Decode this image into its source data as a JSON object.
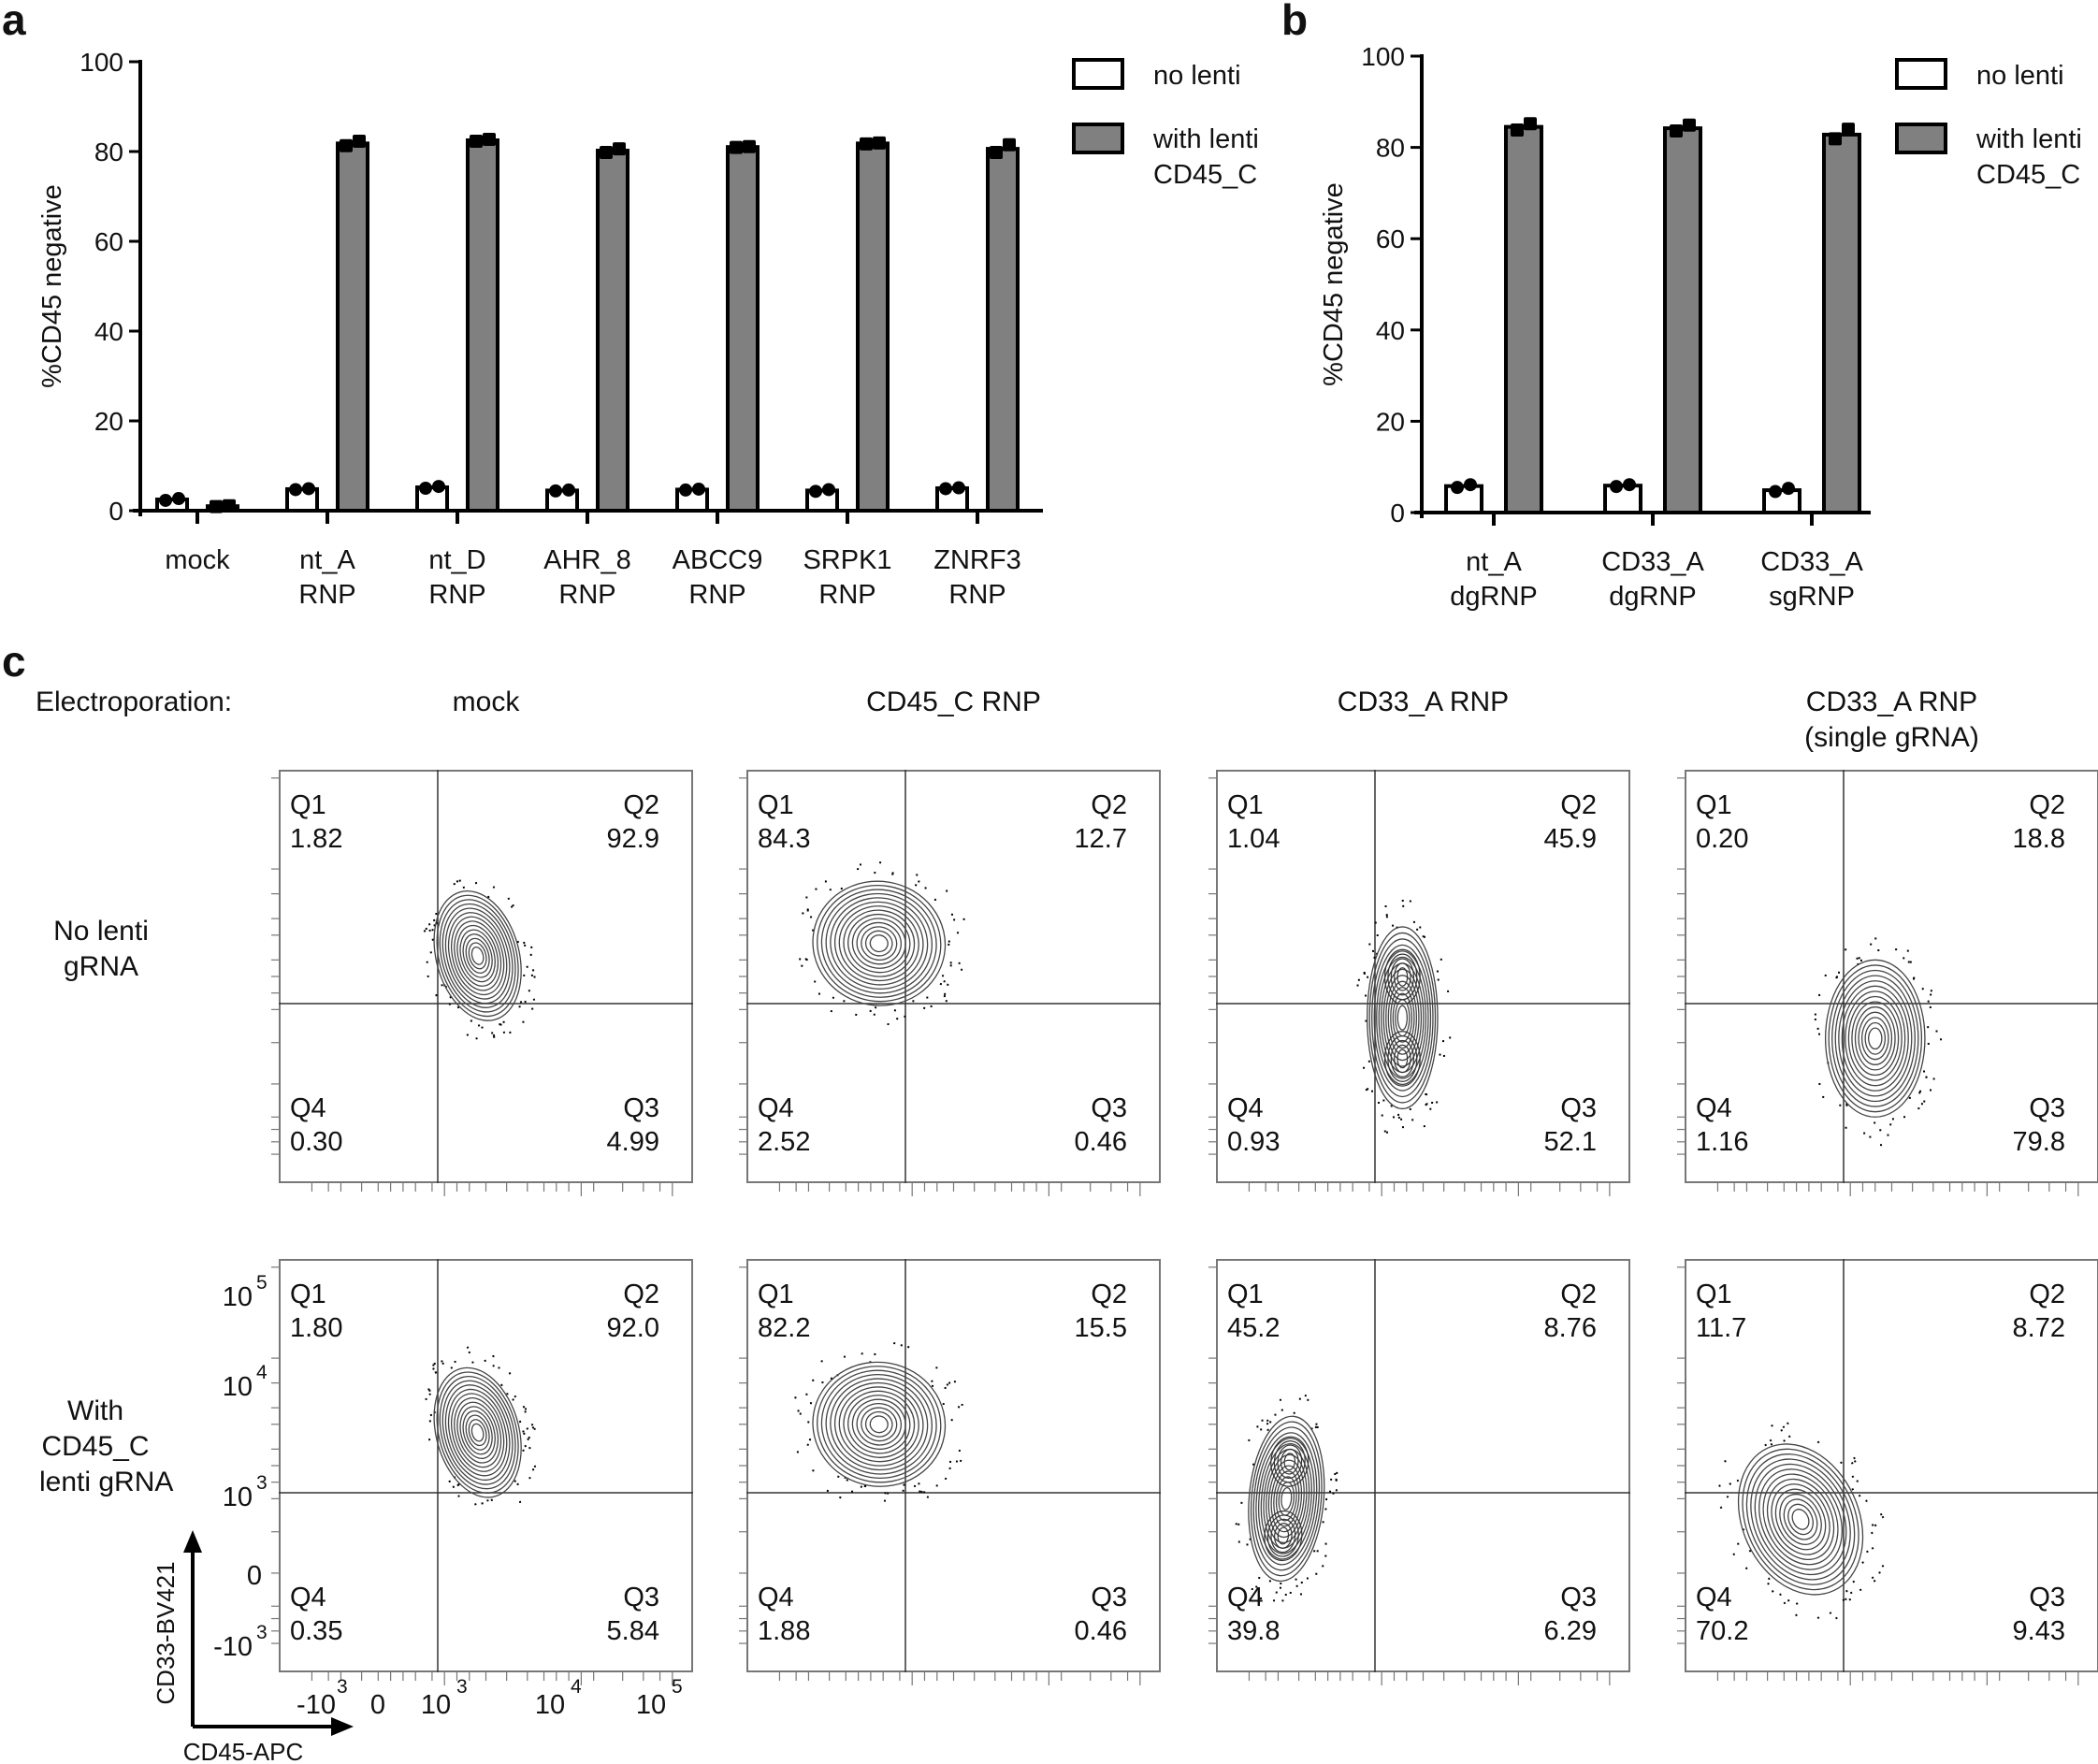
{
  "panels": {
    "a": "a",
    "b": "b",
    "c": "c"
  },
  "chart_data": [
    {
      "type": "bar",
      "panel": "a",
      "title": "",
      "xlabel": "",
      "ylabel": "%CD45 negative",
      "ylim": [
        0,
        100
      ],
      "yticks": [
        "0",
        "20",
        "40",
        "60",
        "80",
        "100"
      ],
      "categories": [
        "mock",
        "nt_A\nRNP",
        "nt_D\nRNP",
        "AHR_8\nRNP",
        "ABCC9\nRNP",
        "SRPK1\nRNP",
        "ZNRF3\nRNP"
      ],
      "series": [
        {
          "name": "no lenti",
          "color": "#ffffff",
          "values": [
            2.5,
            4.8,
            5.2,
            4.5,
            4.7,
            4.5,
            5.0
          ],
          "points": [
            [
              2.3,
              2.7
            ],
            [
              4.7,
              4.9
            ],
            [
              5.0,
              5.4
            ],
            [
              4.4,
              4.6
            ],
            [
              4.6,
              4.8
            ],
            [
              4.3,
              4.7
            ],
            [
              4.9,
              5.1
            ]
          ]
        },
        {
          "name": "with lenti\nCD45_C",
          "color": "#808080",
          "values": [
            1.0,
            81.8,
            82.5,
            80.2,
            81.0,
            81.8,
            80.6
          ],
          "points": [
            [
              0.9,
              1.1
            ],
            [
              81.3,
              82.3
            ],
            [
              82.3,
              82.7
            ],
            [
              79.8,
              80.6
            ],
            [
              80.9,
              81.1
            ],
            [
              81.7,
              81.9
            ],
            [
              79.8,
              81.5
            ]
          ]
        }
      ],
      "legend_position": "top-right",
      "grid": false
    },
    {
      "type": "bar",
      "panel": "b",
      "title": "",
      "xlabel": "",
      "ylabel": "%CD45 negative",
      "ylim": [
        0,
        100
      ],
      "yticks": [
        "0",
        "20",
        "40",
        "60",
        "80",
        "100"
      ],
      "categories": [
        "nt_A\ndgRNP",
        "CD33_A\ndgRNP",
        "CD33_A\nsgRNP"
      ],
      "series": [
        {
          "name": "no lenti",
          "color": "#ffffff",
          "values": [
            5.8,
            5.9,
            4.9
          ],
          "points": [
            [
              5.5,
              6.1
            ],
            [
              5.7,
              6.1
            ],
            [
              4.6,
              5.3
            ]
          ]
        },
        {
          "name": "with lenti\nCD45_C",
          "color": "#808080",
          "values": [
            84.5,
            84.2,
            82.8
          ],
          "points": [
            [
              83.8,
              85.2
            ],
            [
              83.6,
              84.9
            ],
            [
              81.9,
              84.0
            ]
          ]
        }
      ],
      "legend_position": "top-right",
      "grid": false
    },
    {
      "type": "table",
      "panel": "c",
      "title": "Flow cytometry quadrant percentages",
      "row_header": "Electroporation:",
      "columns": [
        "mock",
        "CD45_C RNP",
        "CD33_A RNP",
        "CD33_A RNP\n(single gRNA)"
      ],
      "rows": [
        "No lenti\ngRNA",
        "With\nCD45_C\nlenti gRNA"
      ],
      "xlabel": "CD45-APC",
      "ylabel": "CD33-BV421",
      "axis_ticks": [
        "-10^3",
        "0",
        "10^3",
        "10^4",
        "10^5"
      ],
      "quadrants": [
        [
          {
            "Q1": "1.82",
            "Q2": "92.9",
            "Q3": "4.99",
            "Q4": "0.30"
          },
          {
            "Q1": "84.3",
            "Q2": "12.7",
            "Q3": "0.46",
            "Q4": "2.52"
          },
          {
            "Q1": "1.04",
            "Q2": "45.9",
            "Q3": "52.1",
            "Q4": "0.93"
          },
          {
            "Q1": "0.20",
            "Q2": "18.8",
            "Q3": "79.8",
            "Q4": "1.16"
          }
        ],
        [
          {
            "Q1": "1.80",
            "Q2": "92.0",
            "Q3": "5.84",
            "Q4": "0.35"
          },
          {
            "Q1": "82.2",
            "Q2": "15.5",
            "Q3": "0.46",
            "Q4": "1.88"
          },
          {
            "Q1": "45.2",
            "Q2": "8.76",
            "Q3": "6.29",
            "Q4": "39.8"
          },
          {
            "Q1": "11.7",
            "Q2": "8.72",
            "Q3": "9.43",
            "Q4": "70.2"
          }
        ]
      ]
    }
  ],
  "legend": {
    "no_lenti": "no lenti",
    "with_lenti": "with lenti\nCD45_C"
  },
  "c_labels": {
    "electroporation": "Electroporation:",
    "cols": [
      "mock",
      "CD45_C RNP",
      "CD33_A RNP",
      "CD33_A RNP\n(single gRNA)"
    ],
    "rows": [
      "No lenti\ngRNA",
      "With\nCD45_C\nlenti gRNA"
    ],
    "xlabel": "CD45-APC",
    "ylabel": "CD33-BV421",
    "yticks": [
      "10",
      "5",
      "10",
      "4",
      "10",
      "3",
      "0",
      "-10",
      "3"
    ],
    "xticks": [
      "-10",
      "3",
      "0",
      "10",
      "3",
      "10",
      "4",
      "10",
      "5"
    ],
    "qnames": [
      "Q1",
      "Q2",
      "Q3",
      "Q4"
    ]
  }
}
